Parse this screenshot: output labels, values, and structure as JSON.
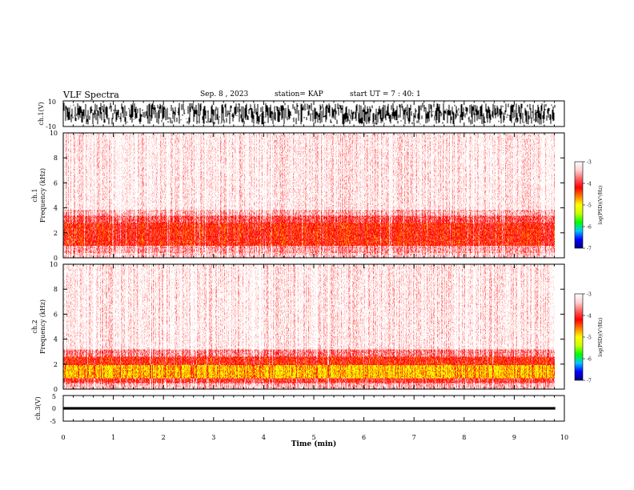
{
  "header": {
    "title": "VLF Spectra",
    "date": "Sep. 8 , 2023",
    "station": "station= KAP",
    "start": "start UT = 7 : 40: 1"
  },
  "colorbar": {
    "label": "log(PSD)(V²/Hz)",
    "ticks": [
      "-3",
      "-4",
      "-5",
      "-6",
      "-7"
    ],
    "stops": [
      "#000080",
      "#0000ff",
      "#00c8ff",
      "#00ff00",
      "#c8ff00",
      "#ffff00",
      "#ff8000",
      "#ff0000",
      "#ff6060",
      "#ffd0d0",
      "#ffffff"
    ]
  },
  "chart_data": [
    {
      "type": "line",
      "id": "ch1_waveform",
      "ylabel": "ch.1(V)",
      "ylim": [
        -10,
        10
      ],
      "yticks": [
        "10",
        "-10"
      ],
      "xlim": [
        0,
        10
      ],
      "x_data_range": [
        0,
        9.82
      ],
      "description_of_signal": "dense noise filling roughly -10..10 V",
      "color": "#000000"
    },
    {
      "type": "heatmap",
      "id": "ch1_spectrogram",
      "ylabel_top": "ch.1",
      "ylabel": "Frequency (kHz)",
      "ylim": [
        0,
        10
      ],
      "yticks": [
        "0",
        "2",
        "4",
        "6",
        "8",
        "10"
      ],
      "xlim": [
        0,
        10
      ],
      "x_data_range": [
        0,
        9.82
      ],
      "zlim": [
        -7,
        -3
      ],
      "band_levels": [
        {
          "fmin": 0.0,
          "fmax": 0.4,
          "level": -3.4
        },
        {
          "fmin": 0.4,
          "fmax": 1.0,
          "level": -3.6
        },
        {
          "fmin": 1.0,
          "fmax": 2.8,
          "level": -4.2
        },
        {
          "fmin": 2.8,
          "fmax": 3.4,
          "level": -3.9
        },
        {
          "fmin": 3.4,
          "fmax": 3.8,
          "level": -3.5
        },
        {
          "fmin": 3.8,
          "fmax": 10.0,
          "level": -3.2
        }
      ]
    },
    {
      "type": "heatmap",
      "id": "ch2_spectrogram",
      "ylabel_top": "ch.2",
      "ylabel": "Frequency (kHz)",
      "ylim": [
        0,
        10
      ],
      "yticks": [
        "0",
        "2",
        "4",
        "6",
        "8",
        "10"
      ],
      "xlim": [
        0,
        10
      ],
      "x_data_range": [
        0,
        9.82
      ],
      "zlim": [
        -7,
        -3
      ],
      "band_levels": [
        {
          "fmin": 0.0,
          "fmax": 0.5,
          "level": -3.5
        },
        {
          "fmin": 0.5,
          "fmax": 0.9,
          "level": -4.0
        },
        {
          "fmin": 0.9,
          "fmax": 1.9,
          "level": -4.8
        },
        {
          "fmin": 1.9,
          "fmax": 2.6,
          "level": -4.2
        },
        {
          "fmin": 2.6,
          "fmax": 3.2,
          "level": -3.7
        },
        {
          "fmin": 3.2,
          "fmax": 10.0,
          "level": -3.2
        }
      ]
    },
    {
      "type": "line",
      "id": "ch3_waveform",
      "ylabel": "ch.3(V)",
      "ylim": [
        -5,
        5
      ],
      "yticks": [
        "5",
        "0",
        "-5"
      ],
      "xlim": [
        0,
        10
      ],
      "x_data_range": [
        0,
        9.82
      ],
      "baseline": 0,
      "description_of_signal": "thick band near 0 V",
      "color": "#000000"
    }
  ],
  "xaxis": {
    "label": "Time (min)",
    "ticks": [
      "0",
      "1",
      "2",
      "3",
      "4",
      "5",
      "6",
      "7",
      "8",
      "9",
      "10"
    ]
  }
}
